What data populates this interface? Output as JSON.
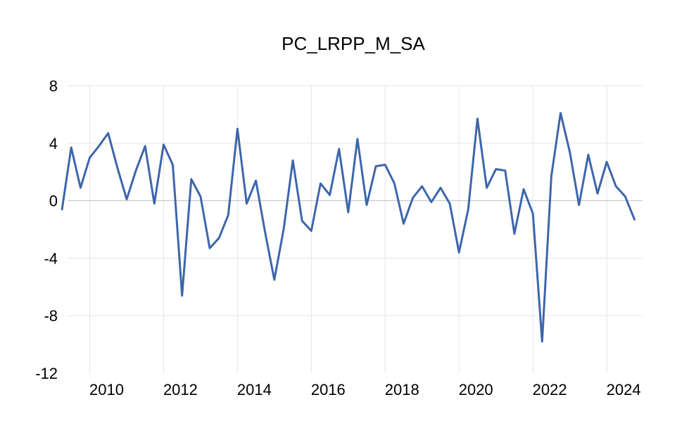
{
  "chart_data": {
    "type": "line",
    "title": "PC_LRPP_M_SA",
    "xlabel": "",
    "ylabel": "",
    "ylim": [
      -12,
      8
    ],
    "yticks": [
      8,
      4,
      0,
      -4,
      -8,
      -12
    ],
    "xlim": [
      2009.4,
      2024.97
    ],
    "xticks": [
      2010,
      2012,
      2014,
      2016,
      2018,
      2020,
      2022,
      2024
    ],
    "grid": true,
    "legend": "none",
    "series": [
      {
        "color": "#3d66ab",
        "x": [
          2009.25,
          2009.5,
          2009.75,
          2010.0,
          2010.25,
          2010.5,
          2010.75,
          2011.0,
          2011.25,
          2011.5,
          2011.75,
          2012.0,
          2012.25,
          2012.5,
          2012.75,
          2013.0,
          2013.25,
          2013.5,
          2013.75,
          2014.0,
          2014.25,
          2014.5,
          2014.75,
          2015.0,
          2015.25,
          2015.5,
          2015.75,
          2016.0,
          2016.25,
          2016.5,
          2016.75,
          2017.0,
          2017.25,
          2017.5,
          2017.75,
          2018.0,
          2018.25,
          2018.5,
          2018.75,
          2019.0,
          2019.25,
          2019.5,
          2019.75,
          2020.0,
          2020.25,
          2020.5,
          2020.75,
          2021.0,
          2021.25,
          2021.5,
          2021.75,
          2022.0,
          2022.25,
          2022.5,
          2022.75,
          2023.0,
          2023.25,
          2023.5,
          2023.75,
          2024.0,
          2024.25,
          2024.5,
          2024.75
        ],
        "values": [
          -0.6,
          3.7,
          0.9,
          3.0,
          3.8,
          4.7,
          2.3,
          0.1,
          2.1,
          3.8,
          -0.2,
          3.9,
          2.5,
          -6.6,
          1.5,
          0.3,
          -3.3,
          -2.6,
          -1.0,
          5.0,
          -0.2,
          1.4,
          -2.2,
          -5.5,
          -2.0,
          2.8,
          -1.4,
          -2.1,
          1.2,
          0.4,
          3.6,
          -0.8,
          4.3,
          -0.3,
          2.4,
          2.5,
          1.2,
          -1.6,
          0.2,
          1.0,
          -0.1,
          0.9,
          -0.2,
          -3.6,
          -0.6,
          5.7,
          0.9,
          2.2,
          2.1,
          -2.3,
          0.8,
          -0.9,
          -9.8,
          1.7,
          6.1,
          3.4,
          -0.3,
          3.2,
          0.5,
          2.7,
          1.0,
          0.3,
          -1.3
        ]
      }
    ]
  }
}
